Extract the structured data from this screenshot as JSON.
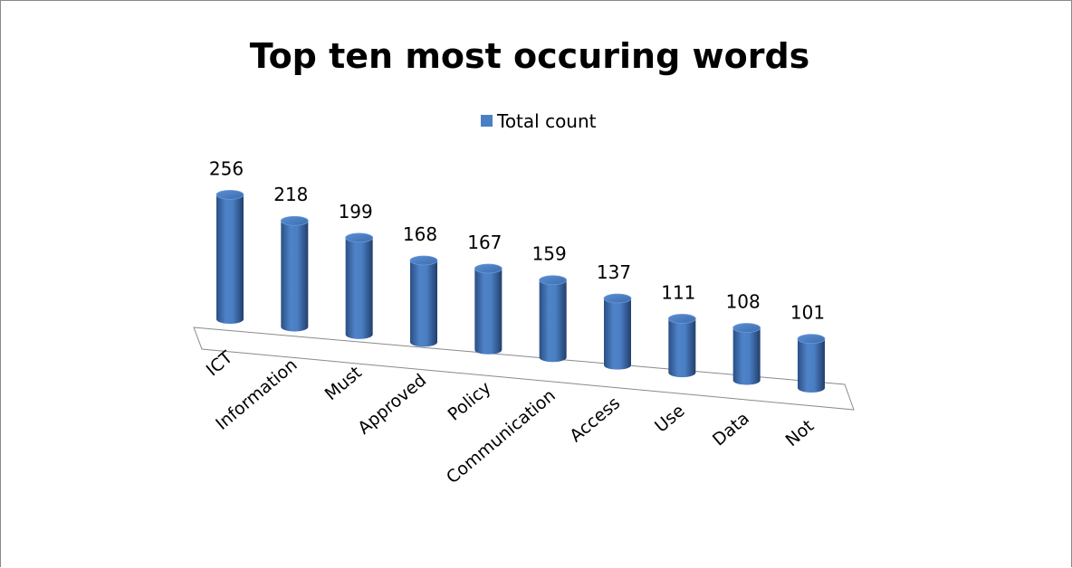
{
  "chart_data": {
    "type": "bar",
    "title": "Top ten most occuring words",
    "categories": [
      "ICT",
      "Information",
      "Must",
      "Approved",
      "Policy",
      "Communication",
      "Access",
      "Use",
      "Data",
      "Not"
    ],
    "series": [
      {
        "name": "Total count",
        "color": "#4a7fc4",
        "values": [
          256,
          218,
          199,
          168,
          167,
          159,
          137,
          111,
          108,
          101
        ]
      }
    ],
    "data_labels": true,
    "legend_position": "top",
    "grid": false
  }
}
